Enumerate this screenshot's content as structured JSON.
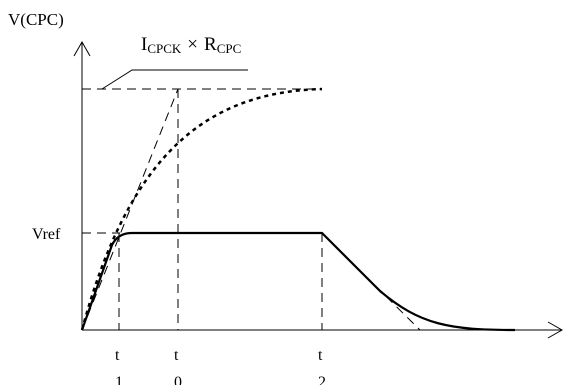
{
  "axis": {
    "y_label": "V(CPC)"
  },
  "annotation": {
    "base": "I",
    "sub1": "CPCK",
    "operator": "×",
    "base2": "R",
    "sub2": "CPC"
  },
  "levels": {
    "vref_label": "Vref"
  },
  "ticks": {
    "t1_main": "t",
    "t1_sub": "1",
    "t0_main": "t",
    "t0_sub": "0",
    "t2_main": "t",
    "t2_sub": "2"
  },
  "colors": {
    "ink": "#000000",
    "background": "#ffffff"
  }
}
